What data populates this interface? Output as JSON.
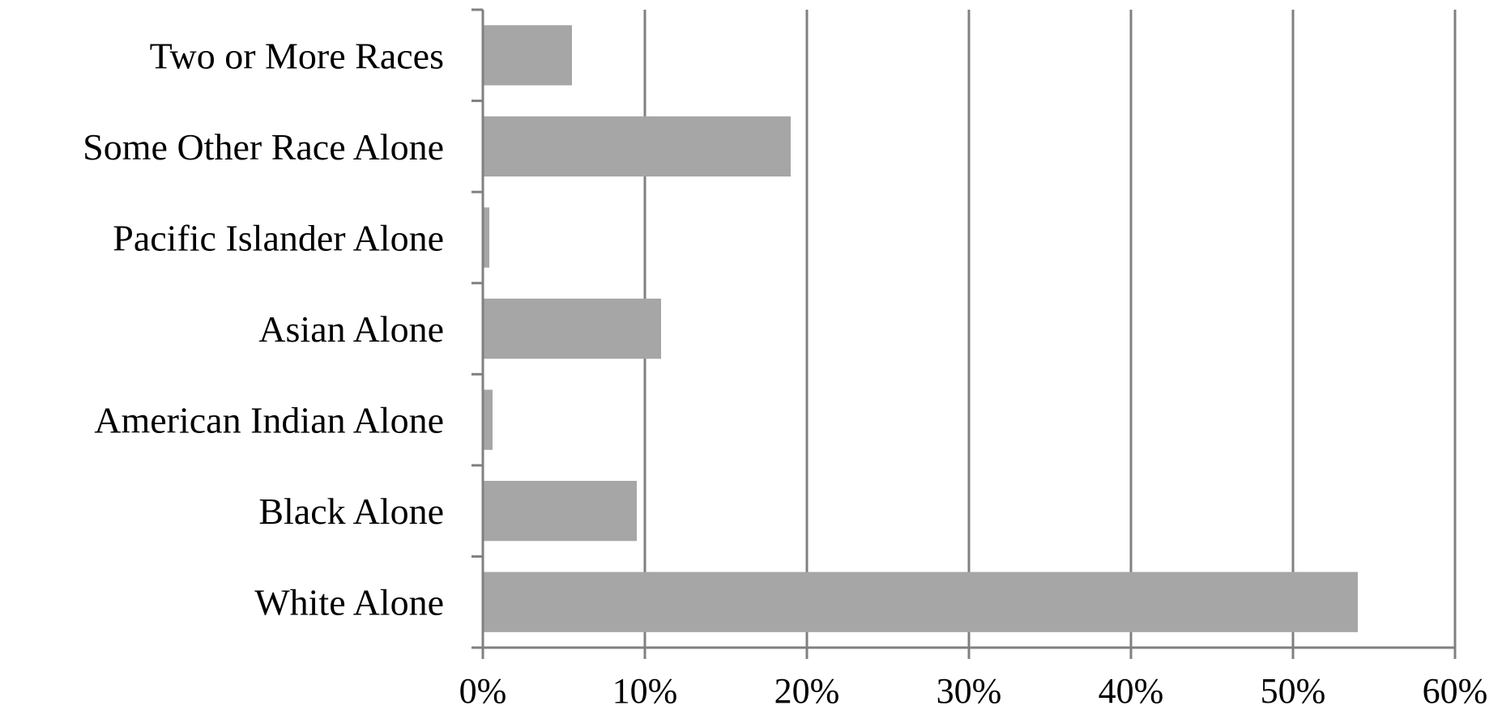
{
  "chart_data": {
    "type": "bar",
    "orientation": "horizontal",
    "categories": [
      "White Alone",
      "Black Alone",
      "American Indian Alone",
      "Asian Alone",
      "Pacific Islander Alone",
      "Some Other Race Alone",
      "Two or More Races"
    ],
    "series": [
      {
        "values": [
          54,
          9.5,
          0.6,
          11,
          0.4,
          19,
          5.5
        ]
      }
    ],
    "xlim": [
      0,
      60
    ],
    "x_ticks": [
      0,
      10,
      20,
      30,
      40,
      50,
      60
    ],
    "x_tick_labels": [
      "0%",
      "10%",
      "20%",
      "30%",
      "40%",
      "50%",
      "60%"
    ],
    "title": "",
    "xlabel": "",
    "ylabel": "",
    "grid": "vertical",
    "legend": "none",
    "colors": {
      "bar": "#a6a6a6",
      "grid": "#808080"
    }
  }
}
